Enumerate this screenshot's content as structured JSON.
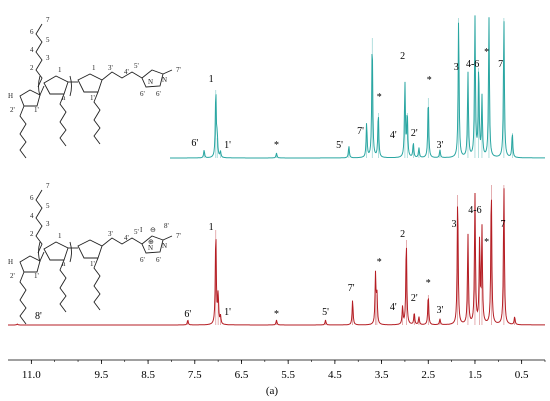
{
  "figure_label": "(a)",
  "chart_data": {
    "type": "line",
    "subtype": "nmr-spectra-stacked",
    "x_ticks": [
      "11.0",
      "9.5",
      "8.5",
      "7.5",
      "6.5",
      "5.5",
      "4.5",
      "3.5",
      "2.5",
      "1.5",
      "0.5"
    ],
    "x_tick_values": [
      11.0,
      9.5,
      8.5,
      7.5,
      6.5,
      5.5,
      4.5,
      3.5,
      2.5,
      1.5,
      0.5
    ],
    "x_domain": [
      11.5,
      0.0
    ],
    "x_reversed": true,
    "series": [
      {
        "color": "#2aa6a2",
        "peaks": [
          {
            "ppm": 7.05,
            "h": 0.68
          },
          {
            "ppm": 7.02,
            "h": 0.2
          },
          {
            "ppm": 7.3,
            "h": 0.08
          },
          {
            "ppm": 6.95,
            "h": 0.06
          },
          {
            "ppm": 5.75,
            "h": 0.05
          },
          {
            "ppm": 4.2,
            "h": 0.12
          },
          {
            "ppm": 3.82,
            "h": 0.35
          },
          {
            "ppm": 3.7,
            "h": 1.2
          },
          {
            "ppm": 3.57,
            "h": 0.45
          },
          {
            "ppm": 3.0,
            "h": 0.75
          },
          {
            "ppm": 2.95,
            "h": 0.45
          },
          {
            "ppm": 2.82,
            "h": 0.15
          },
          {
            "ppm": 2.7,
            "h": 0.1
          },
          {
            "ppm": 2.5,
            "h": 0.6
          },
          {
            "ppm": 2.25,
            "h": 0.08
          },
          {
            "ppm": 1.85,
            "h": 1.4
          },
          {
            "ppm": 1.65,
            "h": 0.85
          },
          {
            "ppm": 1.5,
            "h": 1.4
          },
          {
            "ppm": 1.42,
            "h": 0.9
          },
          {
            "ppm": 1.35,
            "h": 0.6
          },
          {
            "ppm": 1.2,
            "h": 1.4
          },
          {
            "ppm": 0.88,
            "h": 1.4
          },
          {
            "ppm": 0.7,
            "h": 0.25
          }
        ],
        "labels": [
          {
            "text": "1",
            "ppm": 7.15,
            "h": 0.76
          },
          {
            "text": "6'",
            "ppm": 7.5,
            "h": 0.12
          },
          {
            "text": "1'",
            "ppm": 6.8,
            "h": 0.1
          },
          {
            "text": "*",
            "ppm": 5.75,
            "h": 0.1
          },
          {
            "text": "5'",
            "ppm": 4.4,
            "h": 0.1
          },
          {
            "text": "7'",
            "ppm": 3.95,
            "h": 0.24
          },
          {
            "text": "*",
            "ppm": 3.55,
            "h": 0.58
          },
          {
            "text": "4'",
            "ppm": 3.25,
            "h": 0.2
          },
          {
            "text": "2",
            "ppm": 3.05,
            "h": 0.99
          },
          {
            "text": "2'",
            "ppm": 2.8,
            "h": 0.22
          },
          {
            "text": "*",
            "ppm": 2.48,
            "h": 0.75
          },
          {
            "text": "3'",
            "ppm": 2.25,
            "h": 0.1
          },
          {
            "text": "3",
            "ppm": 1.9,
            "h": 0.88
          },
          {
            "text": "4-6",
            "ppm": 1.55,
            "h": 0.91
          },
          {
            "text": "*",
            "ppm": 1.25,
            "h": 1.03
          },
          {
            "text": "7",
            "ppm": 0.95,
            "h": 0.91
          }
        ]
      },
      {
        "color": "#b51e24",
        "peaks": [
          {
            "ppm": 11.3,
            "h": 0.01
          },
          {
            "ppm": 7.65,
            "h": 0.05
          },
          {
            "ppm": 7.05,
            "h": 0.95
          },
          {
            "ppm": 7.0,
            "h": 0.3
          },
          {
            "ppm": 6.95,
            "h": 0.08
          },
          {
            "ppm": 5.75,
            "h": 0.05
          },
          {
            "ppm": 4.7,
            "h": 0.05
          },
          {
            "ppm": 4.12,
            "h": 0.25
          },
          {
            "ppm": 3.63,
            "h": 0.5
          },
          {
            "ppm": 3.6,
            "h": 0.3
          },
          {
            "ppm": 3.05,
            "h": 0.18
          },
          {
            "ppm": 2.97,
            "h": 0.85
          },
          {
            "ppm": 2.8,
            "h": 0.12
          },
          {
            "ppm": 2.7,
            "h": 0.08
          },
          {
            "ppm": 2.5,
            "h": 0.3
          },
          {
            "ppm": 2.25,
            "h": 0.06
          },
          {
            "ppm": 1.87,
            "h": 1.3
          },
          {
            "ppm": 1.65,
            "h": 0.9
          },
          {
            "ppm": 1.5,
            "h": 1.3
          },
          {
            "ppm": 1.4,
            "h": 0.85
          },
          {
            "ppm": 1.35,
            "h": 0.95
          },
          {
            "ppm": 1.15,
            "h": 1.4
          },
          {
            "ppm": 0.88,
            "h": 1.4
          },
          {
            "ppm": 0.65,
            "h": 0.08
          }
        ],
        "labels": [
          {
            "text": "8'",
            "ppm": 10.85,
            "h": 0.06
          },
          {
            "text": "1",
            "ppm": 7.15,
            "h": 0.95
          },
          {
            "text": "6'",
            "ppm": 7.65,
            "h": 0.08
          },
          {
            "text": "1'",
            "ppm": 6.8,
            "h": 0.1
          },
          {
            "text": "*",
            "ppm": 5.75,
            "h": 0.08
          },
          {
            "text": "5'",
            "ppm": 4.7,
            "h": 0.1
          },
          {
            "text": "7'",
            "ppm": 4.15,
            "h": 0.34
          },
          {
            "text": "*",
            "ppm": 3.55,
            "h": 0.6
          },
          {
            "text": "4'",
            "ppm": 3.25,
            "h": 0.15
          },
          {
            "text": "2",
            "ppm": 3.05,
            "h": 0.88
          },
          {
            "text": "2'",
            "ppm": 2.8,
            "h": 0.24
          },
          {
            "text": "*",
            "ppm": 2.5,
            "h": 0.39
          },
          {
            "text": "3'",
            "ppm": 2.25,
            "h": 0.12
          },
          {
            "text": "3",
            "ppm": 1.95,
            "h": 0.98
          },
          {
            "text": "4-6",
            "ppm": 1.5,
            "h": 1.12
          },
          {
            "text": "*",
            "ppm": 1.25,
            "h": 0.8
          },
          {
            "text": "7",
            "ppm": 0.9,
            "h": 0.98
          }
        ]
      }
    ],
    "structures": [
      {
        "atom_labels": [
          "7",
          "6",
          "5",
          "4",
          "3",
          "2",
          "1",
          "3'",
          "4'",
          "5'",
          "H",
          "2'",
          "1'",
          "n",
          "1'",
          "6'",
          "6'",
          "7'",
          "N",
          "N",
          "1"
        ],
        "charge_labels": []
      },
      {
        "atom_labels": [
          "7",
          "6",
          "5",
          "4",
          "3",
          "2",
          "1",
          "3'",
          "4'",
          "5'",
          "H",
          "2'",
          "1'",
          "n",
          "1'",
          "6'",
          "6'",
          "7'",
          "8'",
          "N",
          "N",
          "I"
        ],
        "charge_labels": [
          "⊖",
          "⊕"
        ]
      }
    ]
  }
}
